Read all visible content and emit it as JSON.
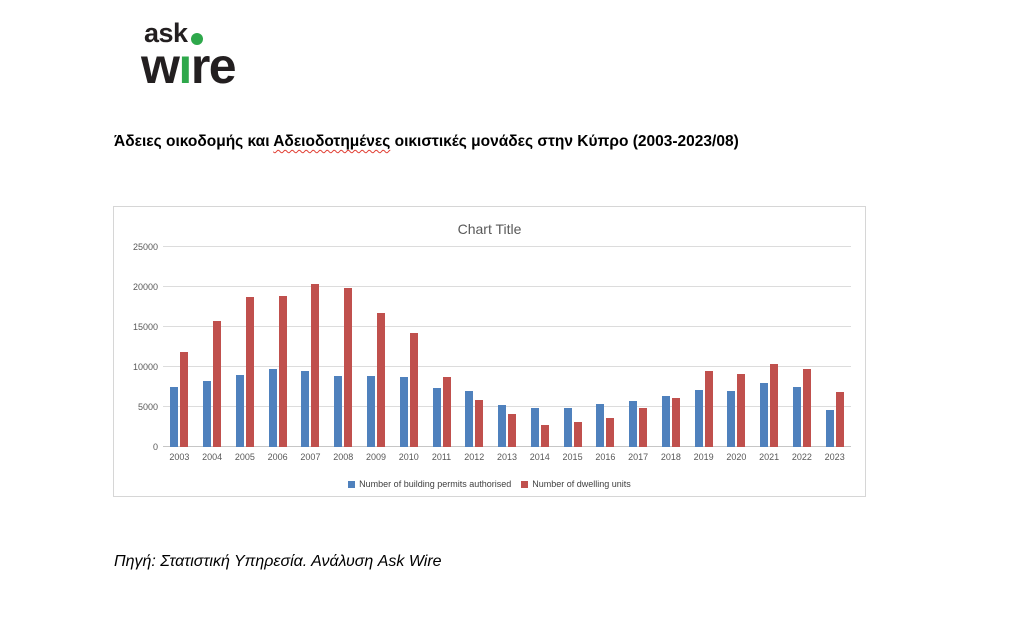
{
  "logo": {
    "ask": "ask",
    "wire_w": "w",
    "wire_i": "ı",
    "wire_re": "re"
  },
  "title": {
    "part1": "Άδειες οικοδομής και ",
    "misspelled": "Αδειοδοτημένες",
    "part2": " οικιστικές μονάδες στην Κύπρο (2003-2023/08)"
  },
  "source_note": "Πηγή: Στατιστική Υπηρεσία. Ανάλυση Ask Wire",
  "colors": {
    "permits_blue": "#4F81BD",
    "dwellings_red": "#C0504D",
    "logo_green": "#2ea84b",
    "gridline": "#dcdcdc",
    "axis_text": "#595959"
  },
  "chart_data": {
    "type": "bar",
    "title": "Chart Title",
    "categories": [
      "2003",
      "2004",
      "2005",
      "2006",
      "2007",
      "2008",
      "2009",
      "2010",
      "2011",
      "2012",
      "2013",
      "2014",
      "2015",
      "2016",
      "2017",
      "2018",
      "2019",
      "2020",
      "2021",
      "2022",
      "2023"
    ],
    "series": [
      {
        "name": "Number of building permits authorised",
        "color": "#4F81BD",
        "values": [
          7500,
          8200,
          9000,
          9800,
          9500,
          8900,
          8900,
          8700,
          7400,
          7000,
          5300,
          4900,
          4900,
          5400,
          5700,
          6400,
          7100,
          7000,
          8000,
          7500,
          4600
        ]
      },
      {
        "name": "Number of dwelling units",
        "color": "#C0504D",
        "values": [
          11900,
          15800,
          18700,
          18900,
          20400,
          19900,
          16700,
          14200,
          8800,
          5900,
          4100,
          2700,
          3100,
          3600,
          4900,
          6100,
          9500,
          9100,
          10400,
          9800,
          6900
        ]
      }
    ],
    "xlabel": "",
    "ylabel": "",
    "ylim": [
      0,
      25000
    ],
    "yticks": [
      0,
      5000,
      10000,
      15000,
      20000,
      25000
    ],
    "grid": true,
    "legend_position": "bottom"
  }
}
